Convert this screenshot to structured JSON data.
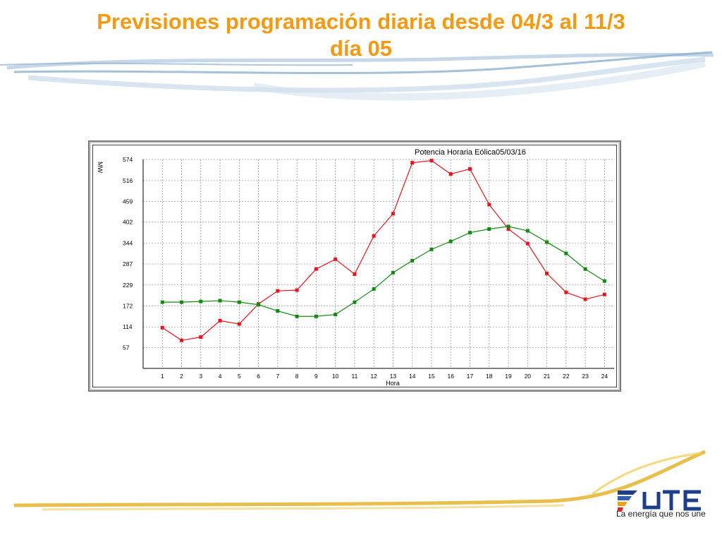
{
  "slide": {
    "title_line1": "Previsiones programación diaria desde 04/3 al 11/3",
    "title_line2": "día 05"
  },
  "logo": {
    "text": "UTE",
    "tagline": "La energía que nos une"
  },
  "colors": {
    "title": "#f39a12",
    "series_red": "#e8141c",
    "series_green": "#128a12",
    "swoosh": "#9bb8d4",
    "swoosh_bottom": "#e9c15a"
  },
  "chart_data": {
    "type": "line",
    "title": "Potencia Horaria Eólica05/03/16",
    "xlabel": "Hora",
    "ylabel": "MW",
    "x": [
      1,
      2,
      3,
      4,
      5,
      6,
      7,
      8,
      9,
      10,
      11,
      12,
      13,
      14,
      15,
      16,
      17,
      18,
      19,
      20,
      21,
      22,
      23,
      24
    ],
    "y_ticks": [
      57,
      114,
      172,
      229,
      287,
      344,
      402,
      459,
      516,
      574
    ],
    "ylim": [
      0,
      574
    ],
    "xlim": [
      0,
      24.5
    ],
    "grid": true,
    "series": [
      {
        "color": "#e8141c",
        "values": [
          112,
          77,
          86,
          131,
          122,
          177,
          213,
          215,
          273,
          300,
          259,
          364,
          425,
          565,
          571,
          534,
          548,
          450,
          383,
          343,
          261,
          209,
          190,
          203
        ]
      },
      {
        "color": "#128a12",
        "values": [
          182,
          182,
          184,
          186,
          182,
          175,
          158,
          143,
          143,
          148,
          182,
          218,
          263,
          296,
          327,
          349,
          373,
          383,
          390,
          378,
          347,
          316,
          273,
          240
        ]
      }
    ]
  }
}
